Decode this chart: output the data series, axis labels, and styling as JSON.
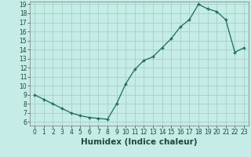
{
  "title": "",
  "xlabel": "Humidex (Indice chaleur)",
  "x": [
    0,
    1,
    2,
    3,
    4,
    5,
    6,
    7,
    8,
    9,
    10,
    11,
    12,
    13,
    14,
    15,
    16,
    17,
    18,
    19,
    20,
    21,
    22,
    23
  ],
  "y": [
    9.0,
    8.5,
    8.0,
    7.5,
    7.0,
    6.7,
    6.5,
    6.4,
    6.3,
    8.0,
    10.2,
    11.8,
    12.8,
    13.2,
    14.2,
    15.2,
    16.5,
    17.3,
    19.0,
    18.5,
    18.2,
    17.3,
    13.7,
    14.2
  ],
  "line_color": "#1a6b5a",
  "marker": "+",
  "marker_size": 3.5,
  "marker_linewidth": 1.0,
  "linewidth": 0.9,
  "background_color": "#c5ece6",
  "grid_color": "#aad4cc",
  "ylim_min": 6,
  "ylim_max": 19,
  "yticks": [
    6,
    7,
    8,
    9,
    10,
    11,
    12,
    13,
    14,
    15,
    16,
    17,
    18,
    19
  ],
  "xlim_min": -0.5,
  "xlim_max": 23.5,
  "xticks": [
    0,
    1,
    2,
    3,
    4,
    5,
    6,
    7,
    8,
    9,
    10,
    11,
    12,
    13,
    14,
    15,
    16,
    17,
    18,
    19,
    20,
    21,
    22,
    23
  ],
  "tick_fontsize": 5.5,
  "xlabel_fontsize": 7.5,
  "tick_color": "#1a4a3a",
  "xlabel_color": "#1a4a3a"
}
